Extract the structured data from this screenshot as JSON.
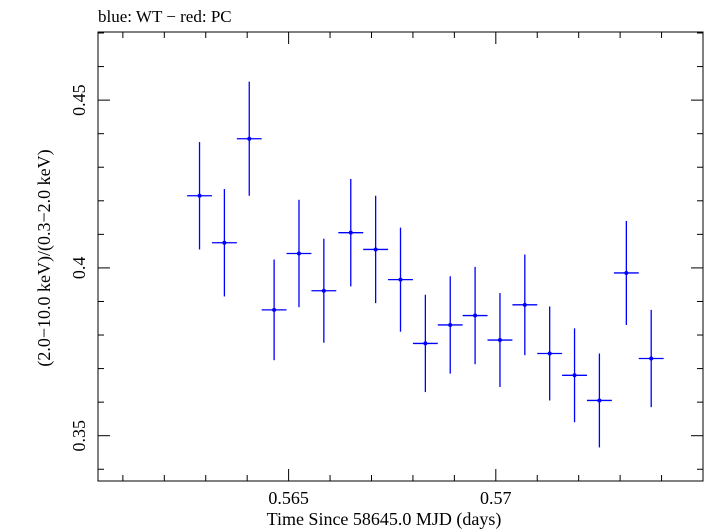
{
  "chart_data": {
    "type": "scatter",
    "title": "blue: WT − red: PC",
    "xlabel": "Time Since 58645.0 MJD (days)",
    "ylabel": "(2.0−10.0 keV)/(0.3−2.0 keV)",
    "xlim": [
      0.5604,
      0.575
    ],
    "ylim": [
      0.3365,
      0.4703
    ],
    "x_ticks": [
      {
        "value": 0.565,
        "label": "0.565"
      },
      {
        "value": 0.57,
        "label": "0.57"
      }
    ],
    "y_ticks": [
      {
        "value": 0.35,
        "label": "0.35"
      },
      {
        "value": 0.4,
        "label": "0.4"
      },
      {
        "value": 0.45,
        "label": "0.45"
      }
    ],
    "grid": false,
    "series": [
      {
        "color": "#0000ff",
        "marker": "point-with-errorbars",
        "points": [
          {
            "x": 0.56285,
            "y": 0.4215,
            "xerr": 0.0003,
            "yerr": 0.016
          },
          {
            "x": 0.56345,
            "y": 0.4075,
            "xerr": 0.0003,
            "yerr": 0.016
          },
          {
            "x": 0.56405,
            "y": 0.4385,
            "xerr": 0.0003,
            "yerr": 0.017
          },
          {
            "x": 0.56465,
            "y": 0.3875,
            "xerr": 0.0003,
            "yerr": 0.015
          },
          {
            "x": 0.56525,
            "y": 0.4043,
            "xerr": 0.0003,
            "yerr": 0.016
          },
          {
            "x": 0.56585,
            "y": 0.3932,
            "xerr": 0.0003,
            "yerr": 0.0155
          },
          {
            "x": 0.5665,
            "y": 0.4105,
            "xerr": 0.0003,
            "yerr": 0.016
          },
          {
            "x": 0.5671,
            "y": 0.4055,
            "xerr": 0.0003,
            "yerr": 0.016
          },
          {
            "x": 0.5677,
            "y": 0.3965,
            "xerr": 0.0003,
            "yerr": 0.0155
          },
          {
            "x": 0.5683,
            "y": 0.3775,
            "xerr": 0.0003,
            "yerr": 0.0145
          },
          {
            "x": 0.5689,
            "y": 0.383,
            "xerr": 0.0003,
            "yerr": 0.0145
          },
          {
            "x": 0.5695,
            "y": 0.3858,
            "xerr": 0.0003,
            "yerr": 0.0145
          },
          {
            "x": 0.5701,
            "y": 0.3785,
            "xerr": 0.0003,
            "yerr": 0.014
          },
          {
            "x": 0.5707,
            "y": 0.389,
            "xerr": 0.0003,
            "yerr": 0.015
          },
          {
            "x": 0.5713,
            "y": 0.3745,
            "xerr": 0.0003,
            "yerr": 0.014
          },
          {
            "x": 0.5719,
            "y": 0.368,
            "xerr": 0.0003,
            "yerr": 0.014
          },
          {
            "x": 0.5725,
            "y": 0.3605,
            "xerr": 0.0003,
            "yerr": 0.014
          },
          {
            "x": 0.57315,
            "y": 0.3985,
            "xerr": 0.0003,
            "yerr": 0.0155
          },
          {
            "x": 0.57375,
            "y": 0.373,
            "xerr": 0.0003,
            "yerr": 0.0145
          }
        ]
      }
    ]
  }
}
